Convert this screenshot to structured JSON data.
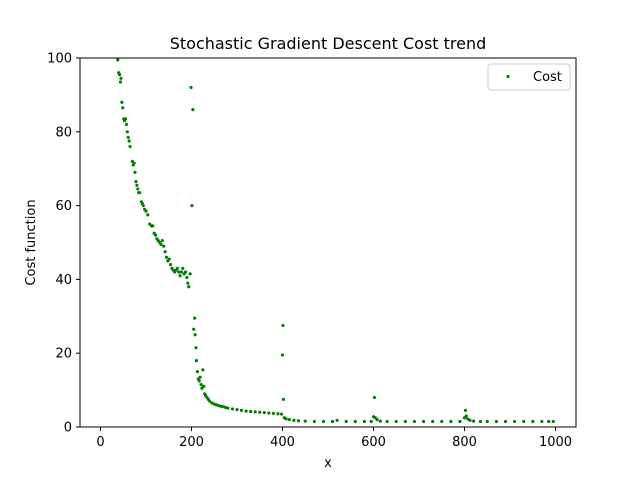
{
  "chart_data": {
    "type": "scatter",
    "title": "Stochastic Gradient Descent Cost trend",
    "xlabel": "x",
    "ylabel": "Cost function",
    "xlim": [
      -45,
      1045
    ],
    "ylim": [
      0,
      100
    ],
    "xticks": [
      0,
      200,
      400,
      600,
      800,
      1000
    ],
    "yticks": [
      0,
      20,
      40,
      60,
      80,
      100
    ],
    "grid": false,
    "legend_position": "top-right",
    "series": [
      {
        "name": "Cost",
        "color": "#008000",
        "marker": "circle",
        "points": [
          [
            38,
            99.5
          ],
          [
            40,
            96
          ],
          [
            42,
            95.5
          ],
          [
            44,
            93.5
          ],
          [
            45,
            94.5
          ],
          [
            47,
            88
          ],
          [
            49,
            86.5
          ],
          [
            51,
            83.5
          ],
          [
            53,
            83
          ],
          [
            55,
            83.5
          ],
          [
            57,
            82
          ],
          [
            59,
            80
          ],
          [
            61,
            78.5
          ],
          [
            63,
            77.5
          ],
          [
            65,
            76
          ],
          [
            70,
            72
          ],
          [
            72,
            71
          ],
          [
            74,
            71.5
          ],
          [
            76,
            69
          ],
          [
            78,
            66.5
          ],
          [
            80,
            65.5
          ],
          [
            82,
            64.5
          ],
          [
            84,
            63.5
          ],
          [
            86,
            63.5
          ],
          [
            90,
            61
          ],
          [
            92,
            60.5
          ],
          [
            94,
            60
          ],
          [
            97,
            59
          ],
          [
            100,
            58.5
          ],
          [
            104,
            57.5
          ],
          [
            108,
            55
          ],
          [
            112,
            54.5
          ],
          [
            115,
            54.5
          ],
          [
            118,
            52.5
          ],
          [
            121,
            52
          ],
          [
            124,
            51
          ],
          [
            127,
            50.5
          ],
          [
            130,
            50
          ],
          [
            133,
            49.5
          ],
          [
            136,
            50.5
          ],
          [
            139,
            49
          ],
          [
            142,
            47.5
          ],
          [
            145,
            46
          ],
          [
            148,
            45
          ],
          [
            151,
            45.5
          ],
          [
            154,
            44
          ],
          [
            157,
            43
          ],
          [
            160,
            42.5
          ],
          [
            163,
            42
          ],
          [
            166,
            42.5
          ],
          [
            169,
            43
          ],
          [
            172,
            42
          ],
          [
            175,
            41
          ],
          [
            178,
            42
          ],
          [
            181,
            43
          ],
          [
            184,
            41.5
          ],
          [
            187,
            42
          ],
          [
            190,
            40.5
          ],
          [
            192,
            39
          ],
          [
            194,
            38
          ],
          [
            197,
            41.5
          ],
          [
            199,
            92
          ],
          [
            201,
            60
          ],
          [
            203,
            86
          ],
          [
            205,
            26.5
          ],
          [
            207,
            29.5
          ],
          [
            208,
            25
          ],
          [
            210,
            21.5
          ],
          [
            211,
            18
          ],
          [
            213,
            15
          ],
          [
            215,
            13
          ],
          [
            217,
            12.5
          ],
          [
            219,
            13.5
          ],
          [
            221,
            11.5
          ],
          [
            223,
            10.5
          ],
          [
            225,
            15.5
          ],
          [
            227,
            11
          ],
          [
            229,
            9
          ],
          [
            231,
            8.5
          ],
          [
            234,
            8
          ],
          [
            237,
            7.5
          ],
          [
            240,
            7
          ],
          [
            245,
            6.5
          ],
          [
            250,
            6.2
          ],
          [
            255,
            6
          ],
          [
            260,
            5.8
          ],
          [
            265,
            5.6
          ],
          [
            270,
            5.5
          ],
          [
            275,
            5.3
          ],
          [
            280,
            5.1
          ],
          [
            290,
            4.9
          ],
          [
            300,
            4.7
          ],
          [
            310,
            4.5
          ],
          [
            320,
            4.3
          ],
          [
            330,
            4.2
          ],
          [
            340,
            4.1
          ],
          [
            350,
            4
          ],
          [
            360,
            3.9
          ],
          [
            370,
            3.8
          ],
          [
            380,
            3.7
          ],
          [
            390,
            3.6
          ],
          [
            398,
            3.5
          ],
          [
            400,
            19.5
          ],
          [
            401,
            27.5
          ],
          [
            402,
            7.5
          ],
          [
            404,
            2.5
          ],
          [
            408,
            2.2
          ],
          [
            415,
            2
          ],
          [
            425,
            1.8
          ],
          [
            435,
            1.7
          ],
          [
            450,
            1.6
          ],
          [
            470,
            1.5
          ],
          [
            490,
            1.5
          ],
          [
            510,
            1.5
          ],
          [
            520,
            1.8
          ],
          [
            540,
            1.5
          ],
          [
            560,
            1.5
          ],
          [
            580,
            1.5
          ],
          [
            595,
            1.5
          ],
          [
            600,
            2.8
          ],
          [
            602,
            8
          ],
          [
            604,
            2.5
          ],
          [
            608,
            2
          ],
          [
            615,
            1.6
          ],
          [
            630,
            1.5
          ],
          [
            650,
            1.5
          ],
          [
            670,
            1.5
          ],
          [
            690,
            1.5
          ],
          [
            710,
            1.5
          ],
          [
            730,
            1.5
          ],
          [
            750,
            1.5
          ],
          [
            770,
            1.5
          ],
          [
            790,
            1.5
          ],
          [
            800,
            2.5
          ],
          [
            802,
            4.5
          ],
          [
            804,
            3
          ],
          [
            807,
            2.2
          ],
          [
            812,
            1.8
          ],
          [
            820,
            1.6
          ],
          [
            835,
            1.5
          ],
          [
            850,
            1.5
          ],
          [
            870,
            1.5
          ],
          [
            890,
            1.5
          ],
          [
            910,
            1.5
          ],
          [
            930,
            1.5
          ],
          [
            950,
            1.5
          ],
          [
            970,
            1.5
          ],
          [
            985,
            1.5
          ],
          [
            995,
            1.5
          ]
        ]
      }
    ]
  }
}
